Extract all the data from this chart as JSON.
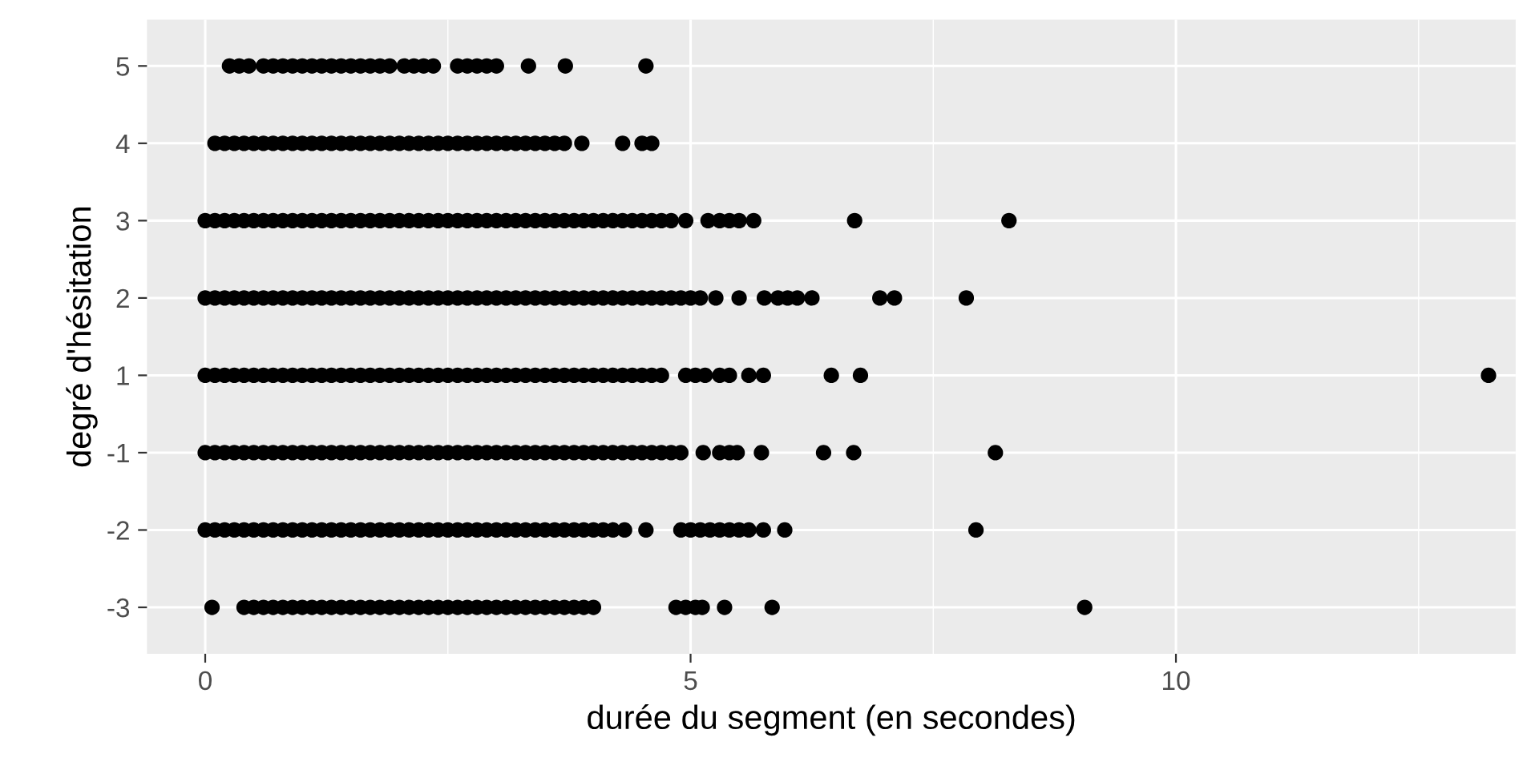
{
  "chart_data": {
    "type": "scatter",
    "orientation": "horizontal",
    "xlabel": "durée du segment (en secondes)",
    "ylabel": "degré d'hésitation",
    "categories": [
      "5",
      "4",
      "3",
      "2",
      "1",
      "-1",
      "-2",
      "-3"
    ],
    "xlim": [
      -0.6,
      13.5
    ],
    "xticks": [
      0,
      {
        "value": 2.5,
        "label": null
      },
      5,
      {
        "value": 7.5,
        "label": null
      },
      10,
      {
        "value": 12.5,
        "label": null
      }
    ],
    "grid": true,
    "marker": "circle",
    "legend": false,
    "series": [
      {
        "color": "#000000",
        "x": [
          "5",
          "5",
          "5",
          "5",
          "5",
          "5",
          "5",
          "5",
          "5",
          "5",
          "5",
          "5",
          "5",
          "5",
          "5",
          "5",
          "5",
          "5",
          "5",
          "5",
          "5",
          "5",
          "5",
          "5",
          "5",
          "5",
          "5",
          "5",
          "5"
        ],
        "values": [
          0.25,
          0.35,
          0.45,
          0.6,
          0.7,
          0.8,
          0.9,
          1.0,
          1.1,
          1.2,
          1.3,
          1.4,
          1.5,
          1.6,
          1.7,
          1.8,
          1.9,
          2.05,
          2.15,
          2.25,
          2.35,
          2.6,
          2.7,
          2.8,
          2.9,
          3.0,
          3.33,
          3.71,
          4.54
        ]
      },
      {
        "color": "#000000",
        "x": [
          "4",
          "4",
          "4",
          "4",
          "4",
          "4",
          "4",
          "4",
          "4",
          "4",
          "4",
          "4",
          "4",
          "4",
          "4",
          "4",
          "4",
          "4",
          "4",
          "4",
          "4",
          "4",
          "4",
          "4",
          "4",
          "4",
          "4",
          "4",
          "4",
          "4",
          "4",
          "4",
          "4",
          "4",
          "4",
          "4",
          "4",
          "4",
          "4",
          "4",
          "4"
        ],
        "values": [
          0.1,
          0.2,
          0.3,
          0.4,
          0.5,
          0.6,
          0.7,
          0.8,
          0.9,
          1.0,
          1.1,
          1.2,
          1.3,
          1.4,
          1.5,
          1.6,
          1.7,
          1.8,
          1.9,
          2.0,
          2.1,
          2.2,
          2.3,
          2.4,
          2.5,
          2.6,
          2.7,
          2.8,
          2.9,
          3.0,
          3.1,
          3.2,
          3.3,
          3.4,
          3.5,
          3.6,
          3.7,
          3.88,
          4.3,
          4.5,
          4.6
        ]
      },
      {
        "color": "#000000",
        "x": [
          "3",
          "3",
          "3",
          "3",
          "3",
          "3",
          "3",
          "3",
          "3",
          "3",
          "3",
          "3",
          "3",
          "3",
          "3",
          "3",
          "3",
          "3",
          "3",
          "3",
          "3",
          "3",
          "3",
          "3",
          "3",
          "3",
          "3",
          "3",
          "3",
          "3",
          "3",
          "3",
          "3",
          "3",
          "3",
          "3",
          "3",
          "3",
          "3",
          "3",
          "3",
          "3",
          "3",
          "3",
          "3",
          "3",
          "3",
          "3",
          "3",
          "3",
          "3",
          "3",
          "3",
          "3",
          "3",
          "3",
          "3"
        ],
        "values": [
          0.0,
          0.1,
          0.2,
          0.3,
          0.4,
          0.5,
          0.6,
          0.7,
          0.8,
          0.9,
          1.0,
          1.1,
          1.2,
          1.3,
          1.4,
          1.5,
          1.6,
          1.7,
          1.8,
          1.9,
          2.0,
          2.1,
          2.2,
          2.3,
          2.4,
          2.5,
          2.6,
          2.7,
          2.8,
          2.9,
          3.0,
          3.1,
          3.2,
          3.3,
          3.4,
          3.5,
          3.6,
          3.7,
          3.8,
          3.9,
          4.0,
          4.1,
          4.2,
          4.3,
          4.4,
          4.5,
          4.6,
          4.7,
          4.8,
          4.95,
          5.18,
          5.3,
          5.4,
          5.5,
          5.65,
          6.69,
          8.28
        ]
      },
      {
        "color": "#000000",
        "x": [
          "2",
          "2",
          "2",
          "2",
          "2",
          "2",
          "2",
          "2",
          "2",
          "2",
          "2",
          "2",
          "2",
          "2",
          "2",
          "2",
          "2",
          "2",
          "2",
          "2",
          "2",
          "2",
          "2",
          "2",
          "2",
          "2",
          "2",
          "2",
          "2",
          "2",
          "2",
          "2",
          "2",
          "2",
          "2",
          "2",
          "2",
          "2",
          "2",
          "2",
          "2",
          "2",
          "2",
          "2",
          "2",
          "2",
          "2",
          "2",
          "2",
          "2",
          "2",
          "2",
          "2",
          "2",
          "2",
          "2",
          "2",
          "2",
          "2",
          "2",
          "2",
          "2"
        ],
        "values": [
          0.0,
          0.1,
          0.2,
          0.3,
          0.4,
          0.5,
          0.6,
          0.7,
          0.8,
          0.9,
          1.0,
          1.1,
          1.2,
          1.3,
          1.4,
          1.5,
          1.6,
          1.7,
          1.8,
          1.9,
          2.0,
          2.1,
          2.2,
          2.3,
          2.4,
          2.5,
          2.6,
          2.7,
          2.8,
          2.9,
          3.0,
          3.1,
          3.2,
          3.3,
          3.4,
          3.5,
          3.6,
          3.7,
          3.8,
          3.9,
          4.0,
          4.1,
          4.2,
          4.3,
          4.4,
          4.5,
          4.6,
          4.7,
          4.8,
          4.9,
          5.0,
          5.1,
          5.26,
          5.5,
          5.76,
          5.9,
          6.0,
          6.1,
          6.25,
          6.95,
          7.1,
          7.84
        ]
      },
      {
        "color": "#000000",
        "x": [
          "1",
          "1",
          "1",
          "1",
          "1",
          "1",
          "1",
          "1",
          "1",
          "1",
          "1",
          "1",
          "1",
          "1",
          "1",
          "1",
          "1",
          "1",
          "1",
          "1",
          "1",
          "1",
          "1",
          "1",
          "1",
          "1",
          "1",
          "1",
          "1",
          "1",
          "1",
          "1",
          "1",
          "1",
          "1",
          "1",
          "1",
          "1",
          "1",
          "1",
          "1",
          "1",
          "1",
          "1",
          "1",
          "1",
          "1",
          "1",
          "1",
          "1",
          "1",
          "1",
          "1",
          "1",
          "1",
          "1",
          "1",
          "1"
        ],
        "values": [
          0.0,
          0.1,
          0.2,
          0.3,
          0.4,
          0.5,
          0.6,
          0.7,
          0.8,
          0.9,
          1.0,
          1.1,
          1.2,
          1.3,
          1.4,
          1.5,
          1.6,
          1.7,
          1.8,
          1.9,
          2.0,
          2.1,
          2.2,
          2.3,
          2.4,
          2.5,
          2.6,
          2.7,
          2.8,
          2.9,
          3.0,
          3.1,
          3.2,
          3.3,
          3.4,
          3.5,
          3.6,
          3.7,
          3.8,
          3.9,
          4.0,
          4.1,
          4.2,
          4.3,
          4.4,
          4.5,
          4.6,
          4.7,
          4.95,
          5.05,
          5.15,
          5.3,
          5.4,
          5.6,
          5.75,
          6.45,
          6.75,
          13.22
        ]
      },
      {
        "color": "#000000",
        "x": [
          "-1",
          "-1",
          "-1",
          "-1",
          "-1",
          "-1",
          "-1",
          "-1",
          "-1",
          "-1",
          "-1",
          "-1",
          "-1",
          "-1",
          "-1",
          "-1",
          "-1",
          "-1",
          "-1",
          "-1",
          "-1",
          "-1",
          "-1",
          "-1",
          "-1",
          "-1",
          "-1",
          "-1",
          "-1",
          "-1",
          "-1",
          "-1",
          "-1",
          "-1",
          "-1",
          "-1",
          "-1",
          "-1",
          "-1",
          "-1",
          "-1",
          "-1",
          "-1",
          "-1",
          "-1",
          "-1",
          "-1",
          "-1",
          "-1",
          "-1",
          "-1",
          "-1",
          "-1",
          "-1",
          "-1",
          "-1",
          "-1",
          "-1"
        ],
        "values": [
          0.0,
          0.1,
          0.2,
          0.3,
          0.4,
          0.5,
          0.6,
          0.7,
          0.8,
          0.9,
          1.0,
          1.1,
          1.2,
          1.3,
          1.4,
          1.5,
          1.6,
          1.7,
          1.8,
          1.9,
          2.0,
          2.1,
          2.2,
          2.3,
          2.4,
          2.5,
          2.6,
          2.7,
          2.8,
          2.9,
          3.0,
          3.1,
          3.2,
          3.3,
          3.4,
          3.5,
          3.6,
          3.7,
          3.8,
          3.9,
          4.0,
          4.1,
          4.2,
          4.3,
          4.4,
          4.5,
          4.6,
          4.7,
          4.8,
          4.9,
          5.13,
          5.3,
          5.4,
          5.48,
          5.73,
          6.37,
          6.68,
          8.14
        ]
      },
      {
        "color": "#000000",
        "x": [
          "-2",
          "-2",
          "-2",
          "-2",
          "-2",
          "-2",
          "-2",
          "-2",
          "-2",
          "-2",
          "-2",
          "-2",
          "-2",
          "-2",
          "-2",
          "-2",
          "-2",
          "-2",
          "-2",
          "-2",
          "-2",
          "-2",
          "-2",
          "-2",
          "-2",
          "-2",
          "-2",
          "-2",
          "-2",
          "-2",
          "-2",
          "-2",
          "-2",
          "-2",
          "-2",
          "-2",
          "-2",
          "-2",
          "-2",
          "-2",
          "-2",
          "-2",
          "-2",
          "-2",
          "-2",
          "-2",
          "-2",
          "-2",
          "-2",
          "-2",
          "-2",
          "-2",
          "-2",
          "-2",
          "-2",
          "-2"
        ],
        "values": [
          0.0,
          0.1,
          0.2,
          0.3,
          0.4,
          0.5,
          0.6,
          0.7,
          0.8,
          0.9,
          1.0,
          1.1,
          1.2,
          1.3,
          1.4,
          1.5,
          1.6,
          1.7,
          1.8,
          1.9,
          2.0,
          2.1,
          2.2,
          2.3,
          2.4,
          2.5,
          2.6,
          2.7,
          2.8,
          2.9,
          3.0,
          3.1,
          3.2,
          3.3,
          3.4,
          3.5,
          3.6,
          3.7,
          3.8,
          3.9,
          4.0,
          4.1,
          4.2,
          4.32,
          4.54,
          4.9,
          5.0,
          5.1,
          5.2,
          5.3,
          5.4,
          5.5,
          5.6,
          5.75,
          5.97,
          7.94
        ]
      },
      {
        "color": "#000000",
        "x": [
          "-3",
          "-3",
          "-3",
          "-3",
          "-3",
          "-3",
          "-3",
          "-3",
          "-3",
          "-3",
          "-3",
          "-3",
          "-3",
          "-3",
          "-3",
          "-3",
          "-3",
          "-3",
          "-3",
          "-3",
          "-3",
          "-3",
          "-3",
          "-3",
          "-3",
          "-3",
          "-3",
          "-3",
          "-3",
          "-3",
          "-3",
          "-3",
          "-3",
          "-3",
          "-3",
          "-3",
          "-3",
          "-3",
          "-3",
          "-3",
          "-3",
          "-3",
          "-3",
          "-3",
          "-3"
        ],
        "values": [
          0.07,
          0.4,
          0.5,
          0.6,
          0.7,
          0.8,
          0.9,
          1.0,
          1.1,
          1.2,
          1.3,
          1.4,
          1.5,
          1.6,
          1.7,
          1.8,
          1.9,
          2.0,
          2.1,
          2.2,
          2.3,
          2.4,
          2.5,
          2.6,
          2.7,
          2.8,
          2.9,
          3.0,
          3.1,
          3.2,
          3.3,
          3.4,
          3.5,
          3.6,
          3.7,
          3.8,
          3.9,
          4.0,
          4.85,
          4.95,
          5.05,
          5.12,
          5.35,
          5.84,
          9.06
        ]
      }
    ]
  }
}
